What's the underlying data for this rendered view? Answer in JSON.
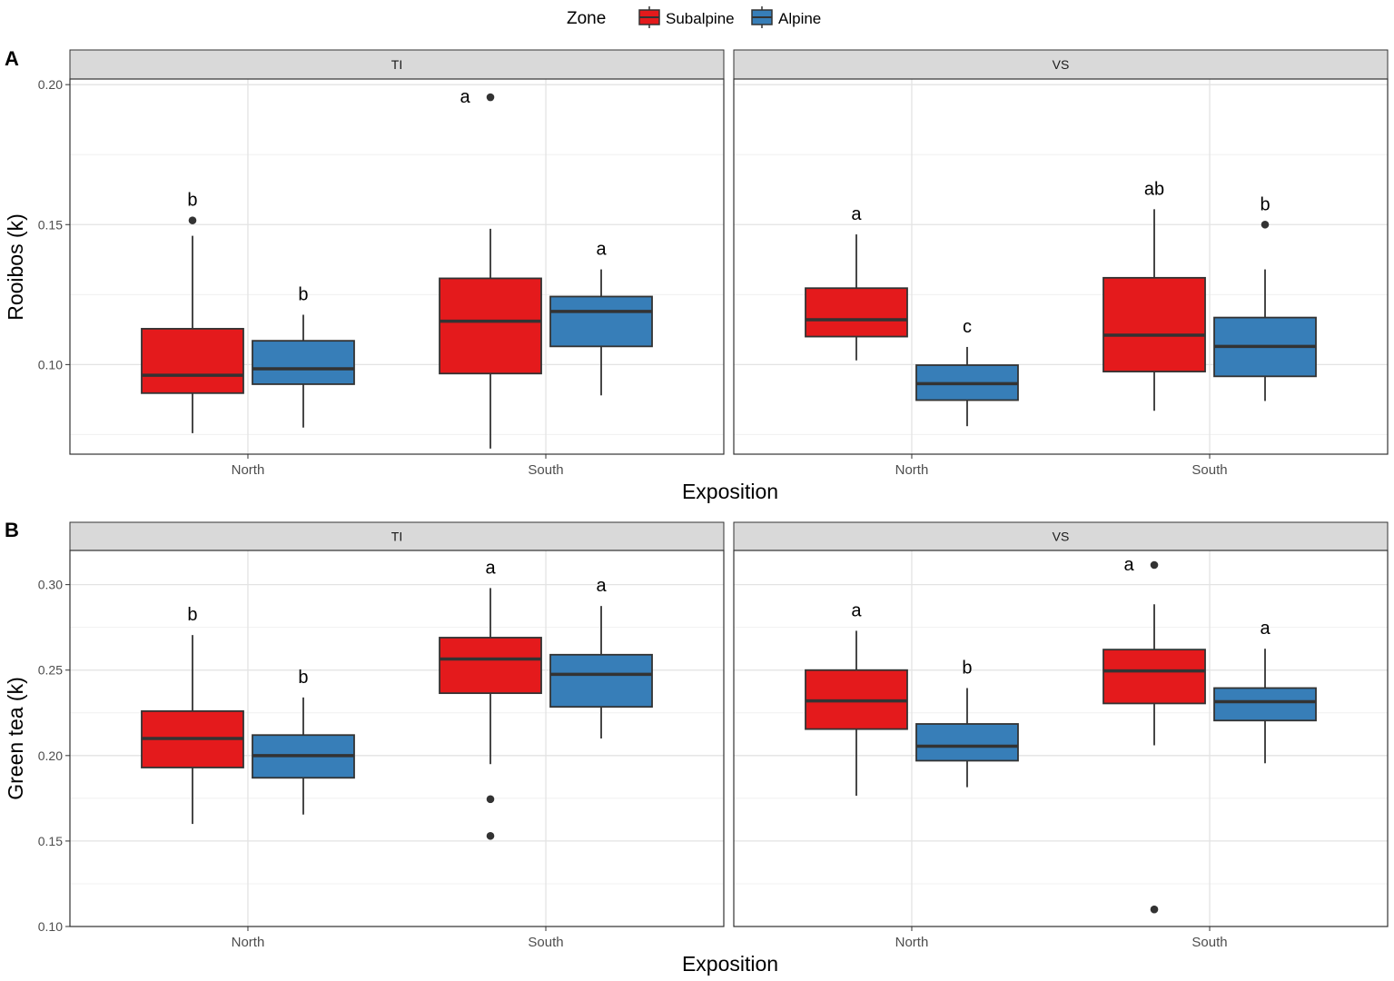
{
  "legend": {
    "title": "Zone",
    "items": [
      {
        "label": "Subalpine",
        "color": "#E41A1C"
      },
      {
        "label": "Alpine",
        "color": "#377EB8"
      }
    ]
  },
  "chart_data": [
    {
      "type": "boxplot",
      "panel_tag": "A",
      "ylabel": "Rooibos (k)",
      "xlabel": "Exposition",
      "ylim": [
        0.068,
        0.202
      ],
      "yticks": [
        0.1,
        0.15,
        0.2
      ],
      "ytick_labels": [
        "0.10",
        "0.15",
        "0.20"
      ],
      "categories": [
        "North",
        "South"
      ],
      "facets": [
        {
          "strip": "TI",
          "boxes": [
            {
              "category": "North",
              "zone": "Subalpine",
              "whisker_low": 0.0755,
              "q1": 0.0898,
              "median": 0.0962,
              "q3": 0.1128,
              "whisker_high": 0.146,
              "outliers": [
                0.1515
              ],
              "letter": "b"
            },
            {
              "category": "North",
              "zone": "Alpine",
              "whisker_low": 0.0775,
              "q1": 0.093,
              "median": 0.0985,
              "q3": 0.1085,
              "whisker_high": 0.1178,
              "outliers": [],
              "letter": "b"
            },
            {
              "category": "South",
              "zone": "Subalpine",
              "whisker_low": 0.07,
              "q1": 0.0968,
              "median": 0.1155,
              "q3": 0.1308,
              "whisker_high": 0.1485,
              "outliers": [
                0.1955
              ],
              "letter": "a"
            },
            {
              "category": "South",
              "zone": "Alpine",
              "whisker_low": 0.089,
              "q1": 0.1065,
              "median": 0.119,
              "q3": 0.1243,
              "whisker_high": 0.134,
              "outliers": [],
              "letter": "a"
            }
          ]
        },
        {
          "strip": "VS",
          "boxes": [
            {
              "category": "North",
              "zone": "Subalpine",
              "whisker_low": 0.1015,
              "q1": 0.11,
              "median": 0.116,
              "q3": 0.1273,
              "whisker_high": 0.1465,
              "outliers": [],
              "letter": "a"
            },
            {
              "category": "North",
              "zone": "Alpine",
              "whisker_low": 0.078,
              "q1": 0.0873,
              "median": 0.0932,
              "q3": 0.0998,
              "whisker_high": 0.1063,
              "outliers": [],
              "letter": "c"
            },
            {
              "category": "South",
              "zone": "Subalpine",
              "whisker_low": 0.0835,
              "q1": 0.0975,
              "median": 0.1105,
              "q3": 0.131,
              "whisker_high": 0.1555,
              "outliers": [],
              "letter": "ab"
            },
            {
              "category": "South",
              "zone": "Alpine",
              "whisker_low": 0.087,
              "q1": 0.0958,
              "median": 0.1065,
              "q3": 0.1168,
              "whisker_high": 0.134,
              "outliers": [
                0.15
              ],
              "letter": "b"
            }
          ]
        }
      ]
    },
    {
      "type": "boxplot",
      "panel_tag": "B",
      "ylabel": "Green tea (k)",
      "xlabel": "Exposition",
      "ylim": [
        0.1,
        0.32
      ],
      "yticks": [
        0.1,
        0.15,
        0.2,
        0.25,
        0.3
      ],
      "ytick_labels": [
        "0.10",
        "0.15",
        "0.20",
        "0.25",
        "0.30"
      ],
      "categories": [
        "North",
        "South"
      ],
      "facets": [
        {
          "strip": "TI",
          "boxes": [
            {
              "category": "North",
              "zone": "Subalpine",
              "whisker_low": 0.16,
              "q1": 0.193,
              "median": 0.21,
              "q3": 0.226,
              "whisker_high": 0.2705,
              "outliers": [],
              "letter": "b"
            },
            {
              "category": "North",
              "zone": "Alpine",
              "whisker_low": 0.1655,
              "q1": 0.187,
              "median": 0.2,
              "q3": 0.212,
              "whisker_high": 0.234,
              "outliers": [],
              "letter": "b"
            },
            {
              "category": "South",
              "zone": "Subalpine",
              "whisker_low": 0.195,
              "q1": 0.2365,
              "median": 0.2565,
              "q3": 0.269,
              "whisker_high": 0.298,
              "outliers": [
                0.1745,
                0.153
              ],
              "letter": "a"
            },
            {
              "category": "South",
              "zone": "Alpine",
              "whisker_low": 0.21,
              "q1": 0.2285,
              "median": 0.2475,
              "q3": 0.259,
              "whisker_high": 0.2875,
              "outliers": [],
              "letter": "a"
            }
          ]
        },
        {
          "strip": "VS",
          "boxes": [
            {
              "category": "North",
              "zone": "Subalpine",
              "whisker_low": 0.1765,
              "q1": 0.2155,
              "median": 0.232,
              "q3": 0.25,
              "whisker_high": 0.273,
              "outliers": [],
              "letter": "a"
            },
            {
              "category": "North",
              "zone": "Alpine",
              "whisker_low": 0.1815,
              "q1": 0.197,
              "median": 0.2055,
              "q3": 0.2185,
              "whisker_high": 0.2395,
              "outliers": [],
              "letter": "b"
            },
            {
              "category": "South",
              "zone": "Subalpine",
              "whisker_low": 0.206,
              "q1": 0.2305,
              "median": 0.2495,
              "q3": 0.262,
              "whisker_high": 0.2885,
              "outliers": [
                0.3115,
                0.11
              ],
              "letter": "a"
            },
            {
              "category": "South",
              "zone": "Alpine",
              "whisker_low": 0.1955,
              "q1": 0.2205,
              "median": 0.2315,
              "q3": 0.2395,
              "whisker_high": 0.2625,
              "outliers": [],
              "letter": "a"
            }
          ]
        }
      ]
    }
  ]
}
